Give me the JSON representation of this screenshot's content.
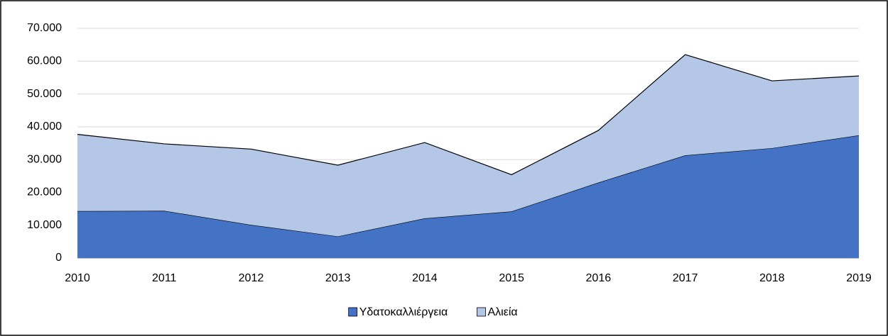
{
  "chart_data": {
    "type": "stacked_area",
    "categories": [
      "2010",
      "2011",
      "2012",
      "2013",
      "2014",
      "2015",
      "2016",
      "2017",
      "2018",
      "2019"
    ],
    "series": [
      {
        "name": "Υδατοκαλλιέργεια",
        "color": "#4472c4",
        "values": [
          14300,
          14400,
          10100,
          6600,
          12100,
          14200,
          23000,
          31300,
          33500,
          37400
        ]
      },
      {
        "name": "Αλιεία",
        "color": "#b4c7e7",
        "values": [
          23400,
          20400,
          23100,
          21700,
          23100,
          11200,
          15900,
          30700,
          20500,
          18100
        ]
      }
    ],
    "ylim": [
      0,
      70000
    ],
    "yticks": [
      0,
      {
        "value": 10000,
        "label": "10.000"
      },
      {
        "value": 20000,
        "label": "20.000"
      },
      {
        "value": 30000,
        "label": "30.000"
      },
      {
        "value": 40000,
        "label": "40.000"
      },
      {
        "value": 50000,
        "label": "50.000"
      },
      {
        "value": 60000,
        "label": "60.000"
      },
      {
        "value": 70000,
        "label": "70.000"
      }
    ],
    "grid": true,
    "legend": "bottom"
  }
}
